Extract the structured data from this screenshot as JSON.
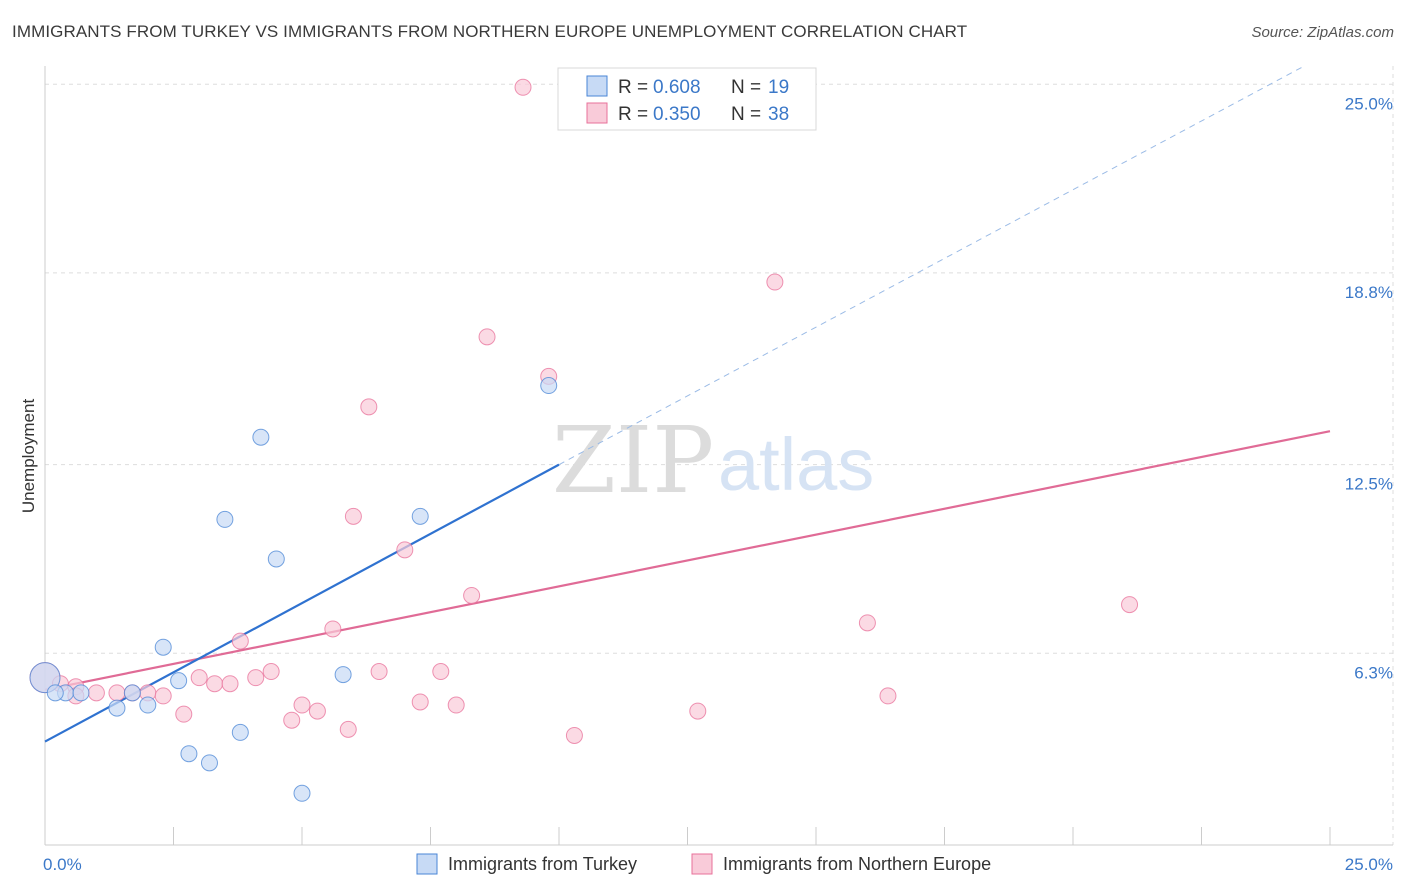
{
  "title": "IMMIGRANTS FROM TURKEY VS IMMIGRANTS FROM NORTHERN EUROPE UNEMPLOYMENT CORRELATION CHART",
  "source": "Source: ZipAtlas.com",
  "watermark": {
    "zip": "ZIP",
    "atlas": "atlas"
  },
  "colors": {
    "turkey": "#4a85d6",
    "turkey_fill": "#c7daf5",
    "turkey_line": "#2f72d0",
    "northern_europe": "#e8709a",
    "northern_europe_fill": "#f9cbd9",
    "northern_europe_line": "#e06b96",
    "tick": "#3b78c8",
    "grid": "#dddddd"
  },
  "legend": {
    "rows": [
      {
        "r_label": "R = ",
        "r_value": "0.608",
        "n_label": "N = ",
        "n_value": "19"
      },
      {
        "r_label": "R = ",
        "r_value": "0.350",
        "n_label": "N = ",
        "n_value": "38"
      }
    ]
  },
  "chart_data": {
    "type": "scatter",
    "title": "IMMIGRANTS FROM TURKEY VS IMMIGRANTS FROM NORTHERN EUROPE UNEMPLOYMENT CORRELATION CHART",
    "xlabel": "",
    "ylabel": "Unemployment",
    "xlim": [
      0,
      25
    ],
    "ylim": [
      0,
      25.6
    ],
    "x_tick_labels": [
      "0.0%",
      "25.0%"
    ],
    "y_ticks": [
      6.3,
      12.5,
      18.8,
      25.0
    ],
    "y_tick_labels": [
      "6.3%",
      "12.5%",
      "18.8%",
      "25.0%"
    ],
    "grid": true,
    "series": [
      {
        "name": "Immigrants from Turkey",
        "r": 0.608,
        "n": 19,
        "points": [
          [
            0.0,
            5.5
          ],
          [
            0.4,
            5.0
          ],
          [
            0.7,
            5.0
          ],
          [
            1.4,
            4.5
          ],
          [
            1.7,
            5.0
          ],
          [
            2.0,
            4.6
          ],
          [
            2.3,
            6.5
          ],
          [
            2.6,
            5.4
          ],
          [
            2.8,
            3.0
          ],
          [
            3.2,
            2.7
          ],
          [
            3.5,
            10.7
          ],
          [
            3.8,
            3.7
          ],
          [
            4.2,
            13.4
          ],
          [
            4.5,
            9.4
          ],
          [
            5.0,
            1.7
          ],
          [
            5.8,
            5.6
          ],
          [
            7.3,
            10.8
          ],
          [
            9.8,
            15.1
          ],
          [
            0.2,
            5.0
          ]
        ],
        "trend": {
          "x0": 0.0,
          "y0": 3.4,
          "x1": 10.0,
          "y1": 12.5,
          "dash_x1": 24.5,
          "dash_y1": 25.6
        }
      },
      {
        "name": "Immigrants from Northern Europe",
        "r": 0.35,
        "n": 38,
        "points": [
          [
            0.0,
            5.5
          ],
          [
            0.3,
            5.3
          ],
          [
            0.6,
            5.2
          ],
          [
            1.0,
            5.0
          ],
          [
            1.4,
            5.0
          ],
          [
            1.7,
            5.0
          ],
          [
            2.0,
            5.0
          ],
          [
            2.3,
            4.9
          ],
          [
            2.7,
            4.3
          ],
          [
            3.0,
            5.5
          ],
          [
            3.3,
            5.3
          ],
          [
            3.6,
            5.3
          ],
          [
            3.8,
            6.7
          ],
          [
            4.1,
            5.5
          ],
          [
            4.4,
            5.7
          ],
          [
            4.8,
            4.1
          ],
          [
            5.0,
            4.6
          ],
          [
            5.3,
            4.4
          ],
          [
            5.6,
            7.1
          ],
          [
            5.9,
            3.8
          ],
          [
            6.0,
            10.8
          ],
          [
            6.3,
            14.4
          ],
          [
            6.5,
            5.7
          ],
          [
            7.0,
            9.7
          ],
          [
            7.3,
            4.7
          ],
          [
            7.7,
            5.7
          ],
          [
            8.0,
            4.6
          ],
          [
            8.3,
            8.2
          ],
          [
            8.6,
            16.7
          ],
          [
            9.3,
            24.9
          ],
          [
            9.8,
            15.4
          ],
          [
            10.3,
            3.6
          ],
          [
            12.7,
            4.4
          ],
          [
            14.2,
            18.5
          ],
          [
            16.0,
            7.3
          ],
          [
            16.4,
            4.9
          ],
          [
            21.1,
            7.9
          ],
          [
            0.6,
            4.9
          ]
        ],
        "trend": {
          "x0": 0.0,
          "y0": 5.1,
          "x1": 25.0,
          "y1": 13.6
        }
      }
    ]
  }
}
